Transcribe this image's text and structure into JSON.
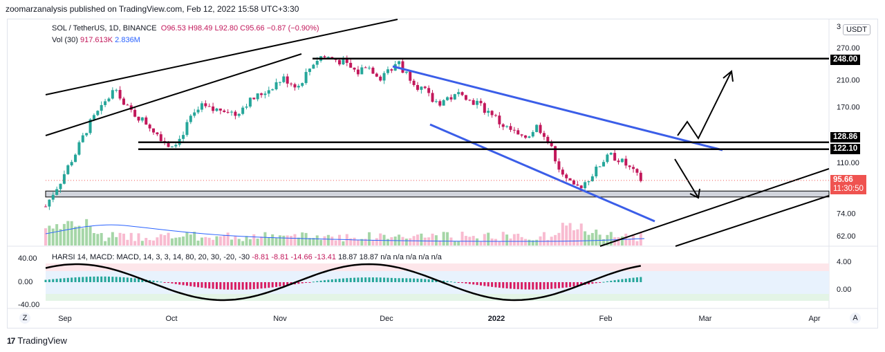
{
  "header": {
    "publisher": "zoomarzanalysis published on TradingView.com, Feb 12, 2022 15:58 UTC+3:30"
  },
  "legend": {
    "symbol": "SOL / TetherUS, 1D, BINANCE",
    "o_label": "O",
    "o": "96.53",
    "h_label": "H",
    "h": "98.49",
    "l_label": "L",
    "l": "92.80",
    "c_label": "C",
    "c": "95.66",
    "change": "−0.87 (−0.90%)",
    "vol_label": "Vol (30)",
    "vol1": "917.613K",
    "vol2": "2.836M"
  },
  "indicator": {
    "harsi": "HARSI 14",
    "macd_label": "MACD: MACD, 14, 3, 3, 14, 80, 20, 30, -20, -30",
    "values": [
      "-8.81",
      "-8.81",
      "-14.66",
      "-13.41",
      "18.87",
      "18.87",
      "n/a",
      "n/a",
      "n/a",
      "n/a",
      "n/a"
    ]
  },
  "currency": "USDT",
  "price_tags": {
    "top": "248.00",
    "level1": "128.86",
    "level2": "122.10",
    "last": "95.66",
    "countdown": "11:30:50"
  },
  "colors": {
    "up": "#26a69a",
    "down": "#c2185b",
    "last": "#ef5350",
    "channel": "#3b5ee8",
    "line": "#000000"
  },
  "chart_data": {
    "type": "candlestick",
    "symbol": "SOL / TetherUS",
    "interval": "1D",
    "exchange": "BINANCE",
    "price_axis": {
      "scale": "log",
      "ticks": [
        270.0,
        210.0,
        170.0,
        110.0,
        74.0,
        62.0
      ],
      "partial_top_tick": "3"
    },
    "time_axis": {
      "ticks": [
        "Sep",
        "Oct",
        "Nov",
        "Dec",
        "2022",
        "Feb",
        "Mar",
        "Apr"
      ]
    },
    "annotations": {
      "horizontal_levels": [
        248.0,
        128.86,
        122.1
      ],
      "support_zone": [
        84,
        88
      ],
      "last_price": 95.66,
      "countdown": "11:30:50"
    },
    "oscillator_axis": {
      "left_ticks": [
        "40.00",
        "0.00",
        "-40.00"
      ],
      "right_ticks": [
        "4.00",
        "0.00"
      ]
    },
    "close_path": [
      [
        0,
        78
      ],
      [
        4,
        95
      ],
      [
        8,
        118
      ],
      [
        12,
        150
      ],
      [
        16,
        175
      ],
      [
        19,
        200
      ],
      [
        21,
        172
      ],
      [
        24,
        160
      ],
      [
        27,
        150
      ],
      [
        30,
        138
      ],
      [
        33,
        126
      ],
      [
        36,
        132
      ],
      [
        39,
        155
      ],
      [
        42,
        170
      ],
      [
        45,
        165
      ],
      [
        48,
        168
      ],
      [
        51,
        160
      ],
      [
        54,
        175
      ],
      [
        57,
        185
      ],
      [
        60,
        195
      ],
      [
        62,
        205
      ],
      [
        64,
        212
      ],
      [
        66,
        205
      ],
      [
        68,
        200
      ],
      [
        70,
        220
      ],
      [
        72,
        240
      ],
      [
        74,
        252
      ],
      [
        76,
        250
      ],
      [
        78,
        246
      ],
      [
        80,
        240
      ],
      [
        82,
        230
      ],
      [
        84,
        222
      ],
      [
        86,
        236
      ],
      [
        88,
        226
      ],
      [
        90,
        214
      ],
      [
        92,
        230
      ],
      [
        93,
        222
      ],
      [
        94,
        238
      ],
      [
        95,
        244
      ],
      [
        96,
        226
      ],
      [
        98,
        215
      ],
      [
        100,
        200
      ],
      [
        102,
        192
      ],
      [
        104,
        178
      ],
      [
        106,
        176
      ],
      [
        108,
        182
      ],
      [
        110,
        184
      ],
      [
        112,
        192
      ],
      [
        114,
        178
      ],
      [
        116,
        176
      ],
      [
        118,
        166
      ],
      [
        120,
        162
      ],
      [
        122,
        150
      ],
      [
        124,
        144
      ],
      [
        126,
        139
      ],
      [
        128,
        132
      ],
      [
        130,
        137
      ],
      [
        132,
        146
      ],
      [
        134,
        138
      ],
      [
        136,
        122
      ],
      [
        138,
        106
      ],
      [
        140,
        96
      ],
      [
        142,
        90
      ],
      [
        144,
        92
      ],
      [
        146,
        97
      ],
      [
        148,
        104
      ],
      [
        150,
        112
      ],
      [
        152,
        116
      ],
      [
        154,
        113
      ],
      [
        156,
        108
      ],
      [
        158,
        102
      ],
      [
        160,
        96
      ]
    ],
    "volume": {
      "label": "Vol (30)",
      "values": [
        "917.613K",
        "2.836M"
      ]
    }
  }
}
